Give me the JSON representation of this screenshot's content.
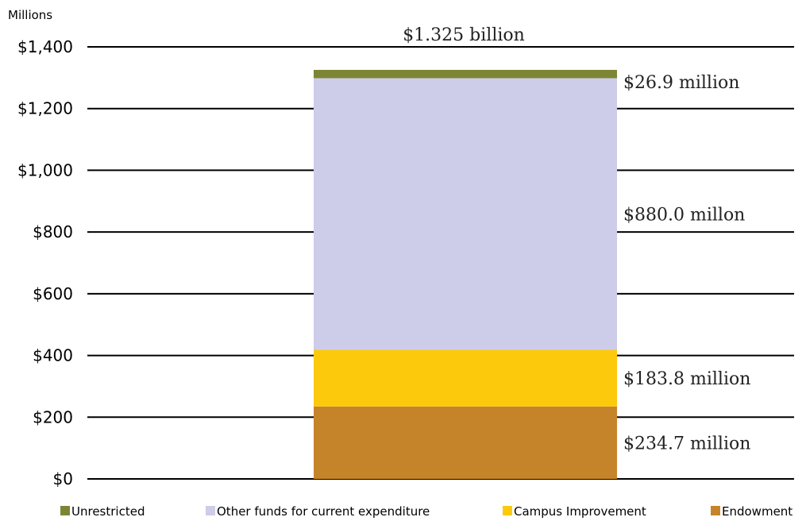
{
  "chart_data": {
    "type": "bar",
    "stacked": true,
    "y_unit_label": "Millions",
    "ylim": [
      0,
      1400
    ],
    "yticks": [
      0,
      200,
      400,
      600,
      800,
      1000,
      1200,
      1400
    ],
    "ytick_labels": [
      "$0",
      "$200",
      "$400",
      "$600",
      "$800",
      "$1,000",
      "$1,200",
      "$1,400"
    ],
    "total_label": "$1.325 billion",
    "grid": true,
    "legend_position": "bottom",
    "series": [
      {
        "name": "Endowment",
        "value": 234.7,
        "color": "#c6842a",
        "label": "$234.7 million"
      },
      {
        "name": "Campus Improvement",
        "value": 183.8,
        "color": "#fcc90c",
        "label": "$183.8 million"
      },
      {
        "name": "Other funds for current expenditure",
        "value": 880.0,
        "color": "#cdcce9",
        "label": "$880.0 millon"
      },
      {
        "name": "Unrestricted",
        "value": 26.9,
        "color": "#7d8534",
        "label": "$26.9 million"
      }
    ],
    "legend_order": [
      "Unrestricted",
      "Other funds for current expenditure",
      "Campus Improvement",
      "Endowment"
    ]
  }
}
